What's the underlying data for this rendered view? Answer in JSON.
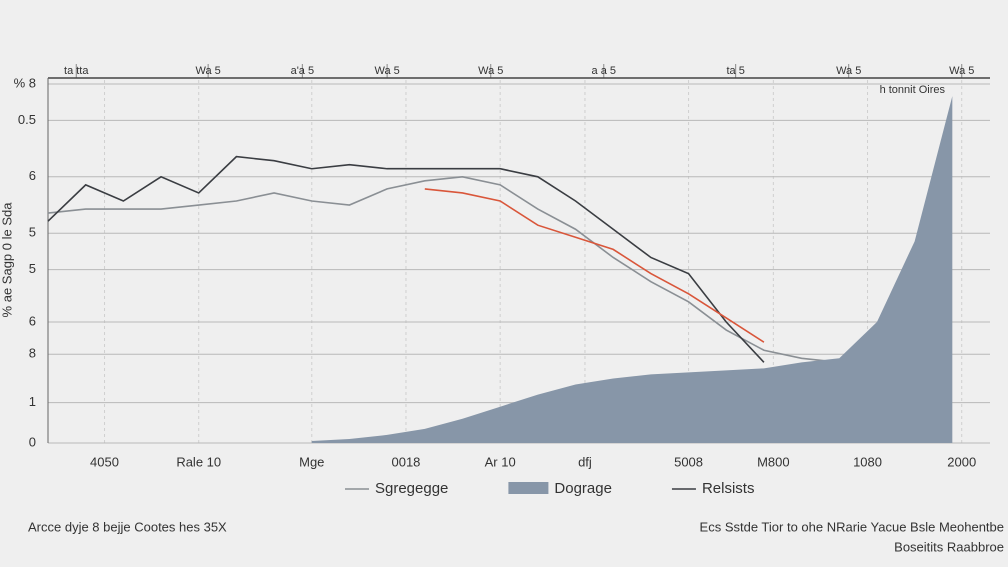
{
  "chart_data": {
    "type": "line",
    "ylabel": "% ae Sagp 0 le Sda",
    "x": [
      0,
      4,
      8,
      12,
      16,
      20,
      24,
      28,
      32,
      36,
      40,
      44,
      48,
      52,
      56,
      60,
      64,
      68,
      72,
      76,
      80,
      84,
      88,
      92,
      96
    ],
    "series": [
      {
        "name": "Sgregegge",
        "kind": "line",
        "color": "#8a8f94",
        "values": [
          5.7,
          5.8,
          5.8,
          5.8,
          5.9,
          6.0,
          6.2,
          6.0,
          5.9,
          6.3,
          6.5,
          6.6,
          6.4,
          5.8,
          5.3,
          4.6,
          4.0,
          3.5,
          2.8,
          2.3,
          2.1,
          2.0,
          2.2,
          null,
          null
        ]
      },
      {
        "name": "Dograge",
        "kind": "area",
        "color": "#8796a8",
        "values": [
          null,
          null,
          null,
          null,
          null,
          null,
          null,
          0.05,
          0.1,
          0.2,
          0.35,
          0.6,
          0.9,
          1.2,
          1.45,
          1.6,
          1.7,
          1.75,
          1.8,
          1.85,
          2.0,
          2.1,
          3.0,
          5.0,
          8.6
        ]
      },
      {
        "name": "Relsists",
        "kind": "line",
        "color": "#3a3d42",
        "values": [
          5.5,
          6.4,
          6.0,
          6.6,
          6.2,
          7.1,
          7.0,
          6.8,
          6.9,
          6.8,
          6.8,
          6.8,
          6.8,
          6.6,
          6.0,
          5.3,
          4.6,
          4.2,
          3.0,
          2.0,
          null,
          null,
          null,
          null,
          null
        ]
      },
      {
        "kind": "line",
        "color": "#d9563a",
        "values": [
          null,
          null,
          null,
          null,
          null,
          null,
          null,
          null,
          null,
          null,
          6.3,
          6.2,
          6.0,
          5.4,
          5.1,
          4.8,
          4.2,
          3.7,
          3.1,
          2.5,
          null,
          null,
          null,
          null,
          null
        ]
      }
    ],
    "xlim": [
      0,
      100
    ],
    "xticks": [
      {
        "value": 6,
        "label": "4050"
      },
      {
        "value": 16,
        "label": "Rale 10"
      },
      {
        "value": 28,
        "label": "Mge"
      },
      {
        "value": 38,
        "label": "0018"
      },
      {
        "value": 48,
        "label": "Ar 10"
      },
      {
        "value": 57,
        "label": "dfj"
      },
      {
        "value": 68,
        "label": "5008"
      },
      {
        "value": 77,
        "label": "M800"
      },
      {
        "value": 87,
        "label": "1080"
      },
      {
        "value": 97,
        "label": "2000"
      }
    ],
    "x2ticks": [
      {
        "value": 3,
        "label": "ta tta"
      },
      {
        "value": 17,
        "label": "Wa 5"
      },
      {
        "value": 27,
        "label": "a'a 5"
      },
      {
        "value": 36,
        "label": "Wa 5"
      },
      {
        "value": 47,
        "label": "Wa 5"
      },
      {
        "value": 59,
        "label": "a a 5"
      },
      {
        "value": 73,
        "label": "ta 5"
      },
      {
        "value": 85,
        "label": "Wa 5"
      },
      {
        "value": 97,
        "label": "Wa 5"
      }
    ],
    "ylim": [
      0,
      9
    ],
    "yticks": [
      0,
      1,
      {
        "value": 2.2,
        "label": "8"
      },
      {
        "value": 3,
        "label": "6"
      },
      {
        "value": 4.3,
        "label": "5"
      },
      {
        "value": 5.2,
        "label": "5"
      },
      {
        "value": 6.6,
        "label": "6"
      },
      {
        "value": 8,
        "label": "0.5"
      },
      {
        "value": 8.9,
        "label": "% 8"
      }
    ],
    "grid": true,
    "annotations": [
      "h tonnit Oires",
      "Arcce dyje 8 bejje Cootes hes 35X",
      "Ecs Sstde Tior to ohe NRarie Yacue Bsle Meohentbe",
      "Boseitits Raabbroe"
    ]
  }
}
